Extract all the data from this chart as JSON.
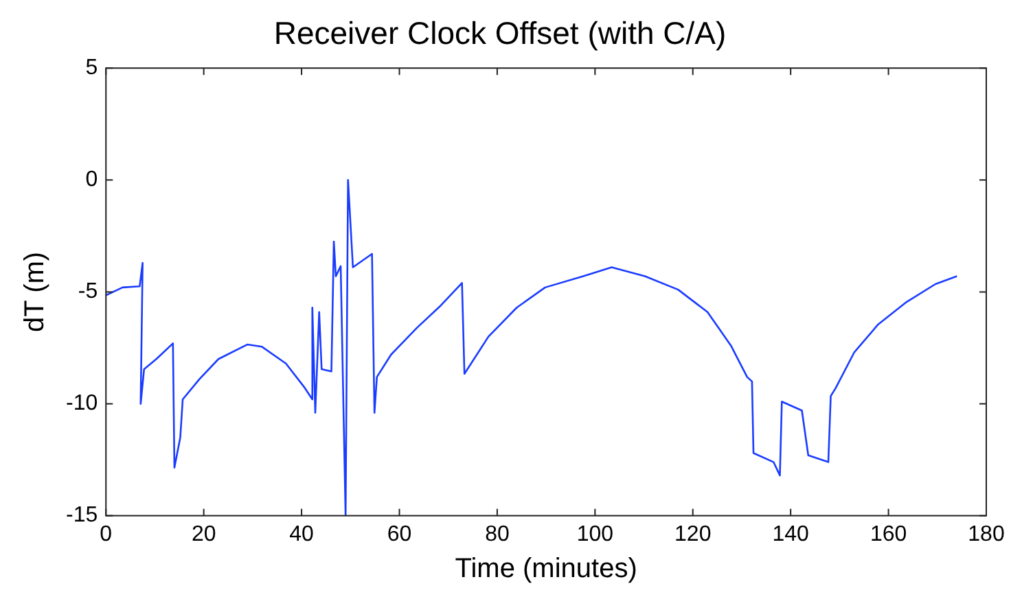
{
  "chart_data": {
    "type": "line",
    "title": "Receiver Clock Offset (with C/A)",
    "xlabel": "Time (minutes)",
    "ylabel": "dT (m)",
    "xlim": [
      0,
      180
    ],
    "xticks": [
      0,
      20,
      40,
      60,
      80,
      100,
      120,
      140,
      160,
      180
    ],
    "ylim": [
      -15,
      5
    ],
    "yticks": [
      -15,
      -10,
      -5,
      0,
      5
    ],
    "grid": false,
    "legend": false,
    "marker": "none",
    "line_style": "solid",
    "series": [
      {
        "color": "#1a3cff",
        "x": [
          0,
          3.4,
          6.9,
          7.5,
          7.1,
          7.8,
          10.3,
          13.7,
          14.0,
          15.2,
          15.7,
          19.1,
          23,
          28.9,
          31.9,
          36.8,
          40.7,
          42.2,
          42.2,
          42.8,
          43.6,
          44.1,
          46.1,
          46.6,
          47,
          48,
          49,
          49.5,
          50.5,
          54.4,
          54.9,
          55.4,
          58.3,
          63.6,
          68.5,
          72.8,
          73.3,
          78.2,
          84,
          89.8,
          97.6,
          103.4,
          110.2,
          117,
          123,
          127.8,
          131.1,
          132.1,
          132.4,
          136.5,
          137.8,
          138.2,
          142.3,
          143.6,
          147.7,
          148.2,
          149.2,
          153,
          157.9,
          163.7,
          169.6,
          174
        ],
        "values": [
          -5.15,
          -4.8,
          -4.75,
          -3.7,
          -10.0,
          -8.45,
          -8.0,
          -7.3,
          -12.85,
          -11.5,
          -9.8,
          -8.9,
          -8.0,
          -7.35,
          -7.45,
          -8.2,
          -9.3,
          -9.8,
          -5.7,
          -10.4,
          -5.9,
          -8.45,
          -8.55,
          -2.75,
          -4.3,
          -3.85,
          -15,
          0,
          -3.9,
          -3.3,
          -10.4,
          -8.8,
          -7.8,
          -6.6,
          -5.6,
          -4.6,
          -8.66,
          -7.0,
          -5.7,
          -4.8,
          -4.3,
          -3.9,
          -4.3,
          -4.9,
          -5.9,
          -7.4,
          -8.8,
          -9.0,
          -12.2,
          -12.6,
          -13.2,
          -9.9,
          -10.3,
          -12.3,
          -12.6,
          -9.65,
          -9.3,
          -7.7,
          -6.45,
          -5.45,
          -4.65,
          -4.3
        ]
      }
    ]
  }
}
